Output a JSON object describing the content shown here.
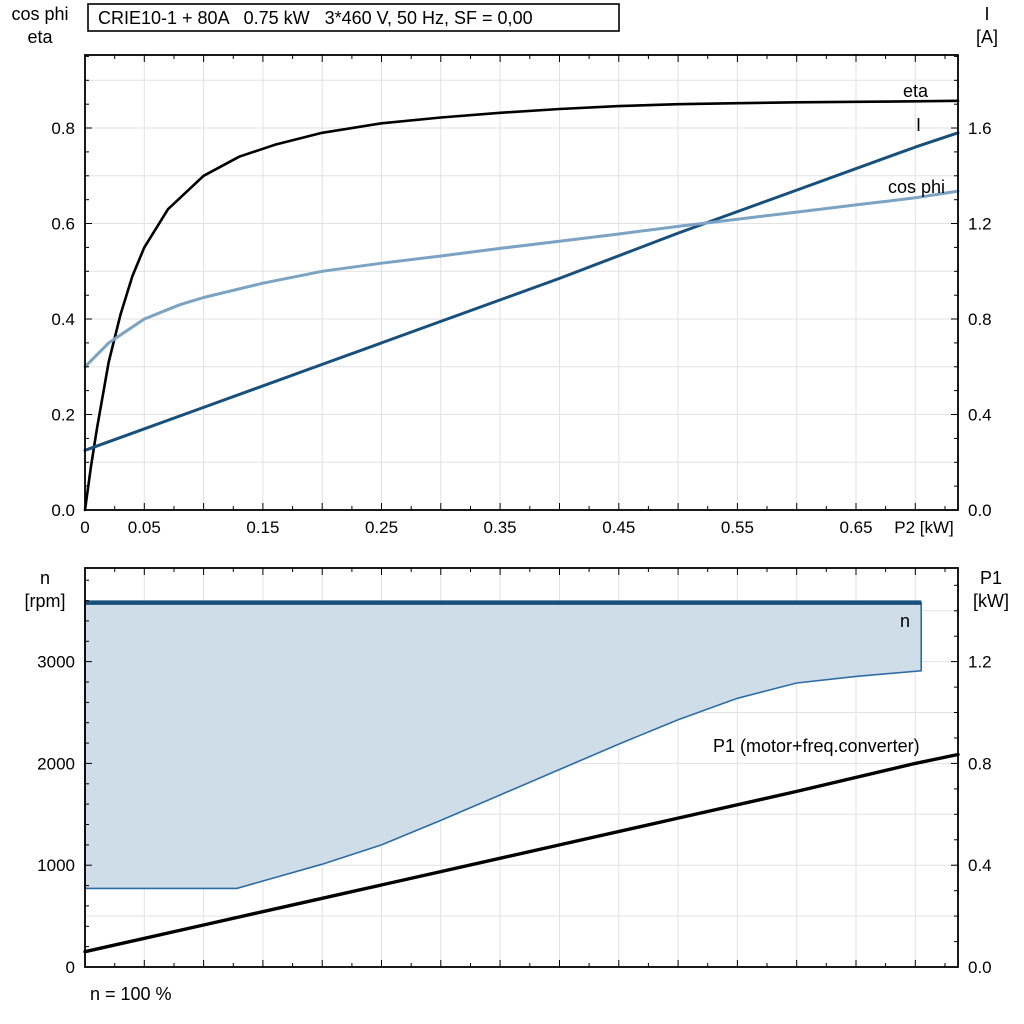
{
  "title": "CRIE10-1 + 80A   0.75 kW   3*460 V, 50 Hz, SF = 0,00",
  "chart_data": [
    {
      "type": "line",
      "title": "CRIE10-1 + 80A   0.75 kW   3*460 V, 50 Hz, SF = 0,00",
      "x_axis": {
        "title": "P2 [kW]",
        "range": [
          0,
          0.736
        ],
        "tick_values": [
          0,
          0.05,
          0.15,
          0.25,
          0.35,
          0.45,
          0.55,
          0.65
        ],
        "tick_labels": [
          "0",
          "0.05",
          "0.15",
          "0.25",
          "0.35",
          "0.45",
          "0.55",
          "0.65"
        ]
      },
      "left_axis": {
        "label_lines": [
          "cos phi",
          "eta"
        ],
        "range": [
          0,
          0.953
        ],
        "tick_values": [
          0,
          0.2,
          0.4,
          0.6,
          0.8
        ],
        "tick_labels": [
          "0.0",
          "0.2",
          "0.4",
          "0.6",
          "0.8"
        ]
      },
      "right_axis": {
        "label_lines": [
          "I",
          "[A]"
        ],
        "range": [
          0,
          1.906
        ],
        "tick_values": [
          0,
          0.4,
          0.8,
          1.2,
          1.6
        ],
        "tick_labels": [
          "0.0",
          "0.4",
          "0.8",
          "1.2",
          "1.6"
        ]
      },
      "series": [
        {
          "name": "eta",
          "axis": "left",
          "color": "#000000",
          "width": 2.6,
          "x": [
            0,
            0.005,
            0.01,
            0.02,
            0.03,
            0.04,
            0.05,
            0.07,
            0.1,
            0.13,
            0.16,
            0.2,
            0.25,
            0.3,
            0.35,
            0.4,
            0.45,
            0.5,
            0.55,
            0.6,
            0.65,
            0.7,
            0.736
          ],
          "y": [
            0,
            0.09,
            0.17,
            0.31,
            0.41,
            0.49,
            0.55,
            0.63,
            0.7,
            0.74,
            0.765,
            0.79,
            0.81,
            0.822,
            0.832,
            0.84,
            0.846,
            0.85,
            0.852,
            0.854,
            0.855,
            0.856,
            0.857
          ]
        },
        {
          "name": "I",
          "axis": "right",
          "color": "#17507c",
          "width": 3,
          "x": [
            0,
            0.1,
            0.2,
            0.3,
            0.4,
            0.5,
            0.6,
            0.7,
            0.736
          ],
          "y": [
            0.25,
            0.43,
            0.61,
            0.79,
            0.97,
            1.16,
            1.34,
            1.52,
            1.58
          ]
        },
        {
          "name": "cos phi",
          "axis": "left",
          "color": "#7aa3c4",
          "width": 3,
          "x": [
            0,
            0.02,
            0.05,
            0.08,
            0.1,
            0.15,
            0.2,
            0.25,
            0.3,
            0.35,
            0.4,
            0.45,
            0.5,
            0.55,
            0.6,
            0.65,
            0.7,
            0.736
          ],
          "y": [
            0.3,
            0.35,
            0.4,
            0.43,
            0.445,
            0.475,
            0.5,
            0.517,
            0.532,
            0.548,
            0.563,
            0.578,
            0.594,
            0.609,
            0.624,
            0.639,
            0.654,
            0.668
          ]
        }
      ]
    },
    {
      "type": "line",
      "x_axis": {
        "caption": "n = 100 %",
        "range": [
          0,
          0.736
        ]
      },
      "left_axis": {
        "label_lines": [
          "n",
          "[rpm]"
        ],
        "range": [
          0,
          3920
        ],
        "tick_values": [
          0,
          1000,
          2000,
          3000
        ],
        "tick_labels": [
          "0",
          "1000",
          "2000",
          "3000"
        ]
      },
      "right_axis": {
        "label_lines": [
          "P1",
          "[kW]"
        ],
        "range": [
          0,
          1.568
        ],
        "tick_values": [
          0,
          0.4,
          0.8,
          1.2
        ],
        "tick_labels": [
          "0.0",
          "0.4",
          "0.8",
          "1.2"
        ]
      },
      "band": {
        "name": "n",
        "fill": "#cfdde9",
        "stroke": "#2e6da4",
        "top_color": "#17507c",
        "upper": {
          "x": [
            0,
            0.705
          ],
          "y": [
            3580,
            3580
          ]
        },
        "right_drop": {
          "x": 0.705,
          "from": 3580,
          "to": 2910
        },
        "lower": {
          "x": [
            0,
            0.128,
            0.15,
            0.2,
            0.25,
            0.3,
            0.35,
            0.4,
            0.45,
            0.5,
            0.55,
            0.6,
            0.65,
            0.705
          ],
          "y": [
            772,
            772,
            845,
            1010,
            1200,
            1440,
            1690,
            1940,
            2190,
            2430,
            2640,
            2790,
            2855,
            2910
          ]
        }
      },
      "series": [
        {
          "name": "P1 (motor+freq.converter)",
          "axis": "right",
          "color": "#000000",
          "width": 3.4,
          "x": [
            0,
            0.1,
            0.2,
            0.3,
            0.4,
            0.5,
            0.6,
            0.7,
            0.736
          ],
          "y": [
            0.06,
            0.165,
            0.27,
            0.375,
            0.48,
            0.585,
            0.69,
            0.8,
            0.835
          ]
        }
      ]
    }
  ]
}
